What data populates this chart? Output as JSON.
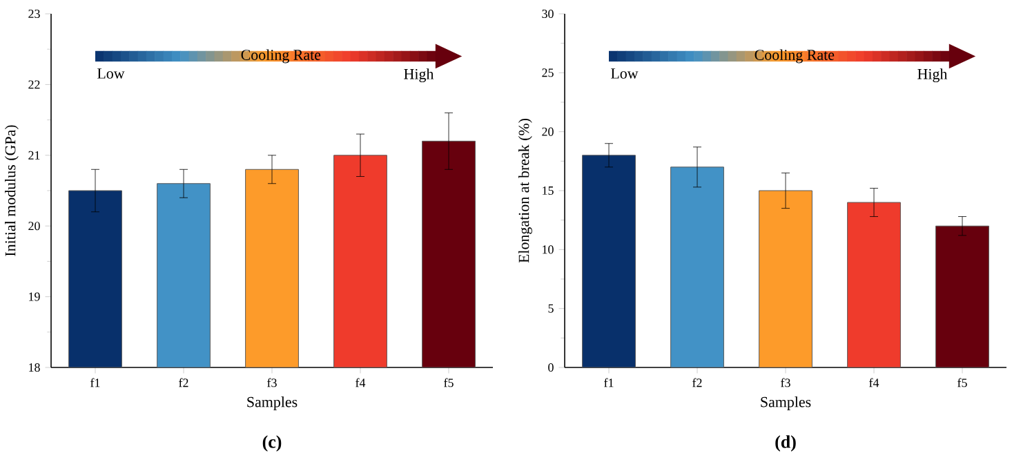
{
  "chart_data": [
    {
      "type": "bar",
      "categories": [
        "f1",
        "f2",
        "f3",
        "f4",
        "f5"
      ],
      "values": [
        20.5,
        20.6,
        20.8,
        21.0,
        21.2
      ],
      "errors": [
        0.3,
        0.2,
        0.2,
        0.3,
        0.4
      ],
      "colors": [
        "#08306b",
        "#4292c6",
        "#fd9b2a",
        "#ef3b2c",
        "#67000d"
      ],
      "ylim": [
        18,
        23
      ],
      "yticks": [
        18,
        19,
        20,
        21,
        22,
        23
      ],
      "xlabel": "Samples",
      "ylabel": "Initial modulus (GPa)",
      "annotations": [
        "(c)",
        "Cooling Rate",
        "Low",
        "High"
      ]
    },
    {
      "type": "bar",
      "categories": [
        "f1",
        "f2",
        "f3",
        "f4",
        "f5"
      ],
      "values": [
        18,
        17,
        15,
        14,
        12
      ],
      "errors": [
        1,
        1.7,
        1.5,
        1.2,
        0.8
      ],
      "colors": [
        "#08306b",
        "#4292c6",
        "#fd9b2a",
        "#ef3b2c",
        "#67000d"
      ],
      "ylim": [
        0,
        30
      ],
      "yticks": [
        0,
        5,
        10,
        15,
        20,
        25,
        30
      ],
      "xlabel": "Samples",
      "ylabel": "Elongation at break (%)",
      "annotations": [
        "(d)",
        "Cooling Rate",
        "Low",
        "High"
      ]
    }
  ]
}
